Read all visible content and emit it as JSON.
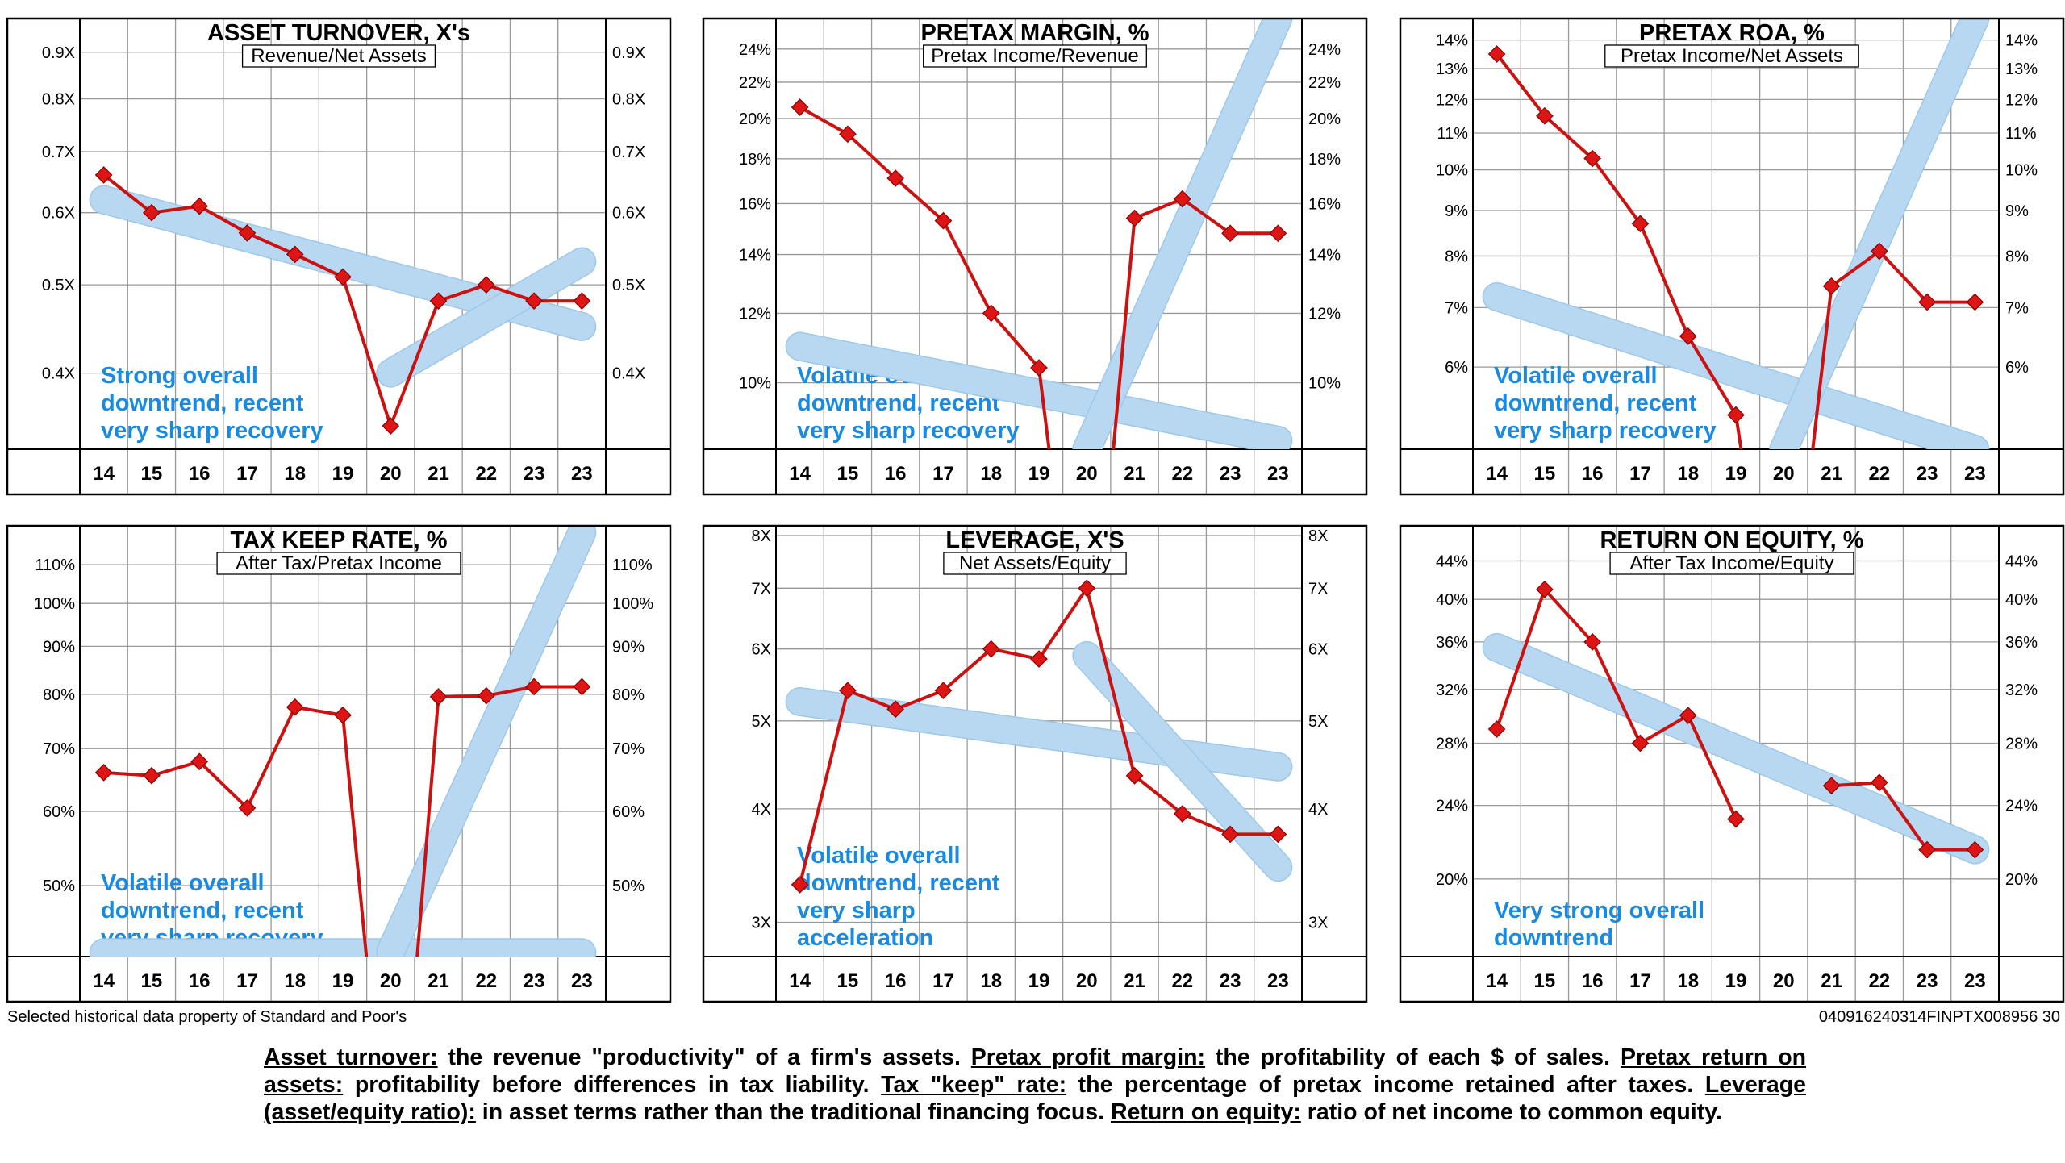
{
  "years": [
    "14",
    "15",
    "16",
    "17",
    "18",
    "19",
    "20",
    "21",
    "22",
    "23",
    "23"
  ],
  "colors": {
    "series": "#cc1111",
    "trend": "#b8d8f2",
    "note": "#1a8ae0",
    "grid": "#999999"
  },
  "chart_data": [
    {
      "id": "asset-turnover",
      "type": "line",
      "scale": "log",
      "title": "ASSET TURNOVER, X's",
      "subtitle": "Revenue/Net Assets",
      "ylim": [
        0.33,
        0.98
      ],
      "ticks": [
        {
          "v": 0.9,
          "l": "0.9X"
        },
        {
          "v": 0.8,
          "l": "0.8X"
        },
        {
          "v": 0.7,
          "l": "0.7X"
        },
        {
          "v": 0.6,
          "l": "0.6X"
        },
        {
          "v": 0.5,
          "l": "0.5X"
        },
        {
          "v": 0.4,
          "l": "0.4X"
        }
      ],
      "values": [
        0.66,
        0.6,
        0.61,
        0.57,
        0.54,
        0.51,
        0.35,
        0.48,
        0.5,
        0.48,
        0.48
      ],
      "trends": [
        {
          "x": [
            0,
            10
          ],
          "y": [
            0.62,
            0.45
          ]
        },
        {
          "x": [
            6,
            10
          ],
          "y": [
            0.4,
            0.53
          ]
        }
      ],
      "note": [
        "Strong overall",
        "downtrend,  recent",
        "very sharp recovery"
      ],
      "note_pos": "bottom-left"
    },
    {
      "id": "pretax-margin",
      "type": "line",
      "scale": "log",
      "title": "PRETAX MARGIN, %",
      "subtitle": "Pretax Income/Revenue",
      "ylim": [
        8.4,
        26.0
      ],
      "ticks": [
        {
          "v": 24,
          "l": "24%"
        },
        {
          "v": 22,
          "l": "22%"
        },
        {
          "v": 20,
          "l": "20%"
        },
        {
          "v": 18,
          "l": "18%"
        },
        {
          "v": 16,
          "l": "16%"
        },
        {
          "v": 14,
          "l": "14%"
        },
        {
          "v": 12,
          "l": "12%"
        },
        {
          "v": 10,
          "l": "10%"
        }
      ],
      "values": [
        20.6,
        19.2,
        17.1,
        15.3,
        12.0,
        10.4,
        null,
        15.4,
        16.2,
        14.8,
        14.8
      ],
      "drops": [
        {
          "from": 5,
          "x": 5.22
        },
        {
          "from": 7,
          "x": 6.55
        }
      ],
      "trends": [
        {
          "x": [
            0,
            10
          ],
          "y": [
            11.0,
            8.6
          ]
        },
        {
          "x": [
            6,
            10
          ],
          "y": [
            8.4,
            26.0
          ]
        }
      ],
      "note": [
        "Volatile overall",
        "downtrend,  recent",
        "very sharp recovery"
      ],
      "note_pos": "bottom-left"
    },
    {
      "id": "pretax-roa",
      "type": "line",
      "scale": "log",
      "title": "PRETAX ROA, %",
      "subtitle": "Pretax Income/Net Assets",
      "ylim": [
        4.85,
        14.8
      ],
      "ticks": [
        {
          "v": 14,
          "l": "14%"
        },
        {
          "v": 13,
          "l": "13%"
        },
        {
          "v": 12,
          "l": "12%"
        },
        {
          "v": 11,
          "l": "11%"
        },
        {
          "v": 10,
          "l": "10%"
        },
        {
          "v": 9,
          "l": "9%"
        },
        {
          "v": 8,
          "l": "8%"
        },
        {
          "v": 7,
          "l": "7%"
        },
        {
          "v": 6,
          "l": "6%"
        }
      ],
      "values": [
        13.5,
        11.5,
        10.3,
        8.7,
        6.5,
        5.3,
        null,
        7.4,
        8.1,
        7.1,
        7.1
      ],
      "drops": [
        {
          "from": 5,
          "x": 5.12
        },
        {
          "from": 7,
          "x": 6.6
        }
      ],
      "trends": [
        {
          "x": [
            0,
            10
          ],
          "y": [
            7.2,
            4.85
          ]
        },
        {
          "x": [
            6,
            10
          ],
          "y": [
            4.85,
            14.8
          ]
        }
      ],
      "note": [
        "Volatile overall",
        "downtrend,  recent",
        "very sharp recovery"
      ],
      "note_pos": "bottom-left"
    },
    {
      "id": "tax-keep-rate",
      "type": "line",
      "scale": "log",
      "title": "TAX KEEP RATE, %",
      "subtitle": "After Tax/Pretax Income",
      "ylim": [
        42.0,
        121.0
      ],
      "ticks": [
        {
          "v": 110,
          "l": "110%"
        },
        {
          "v": 100,
          "l": "100%"
        },
        {
          "v": 90,
          "l": "90%"
        },
        {
          "v": 80,
          "l": "80%"
        },
        {
          "v": 70,
          "l": "70%"
        },
        {
          "v": 60,
          "l": "60%"
        },
        {
          "v": 50,
          "l": "50%"
        }
      ],
      "values": [
        66.0,
        65.5,
        67.8,
        60.5,
        77.5,
        76.0,
        null,
        79.5,
        79.7,
        81.5,
        81.5
      ],
      "drops": [
        {
          "from": 5,
          "x": 5.5
        },
        {
          "from": 7,
          "x": 6.55
        }
      ],
      "trends": [
        {
          "x": [
            0,
            10
          ],
          "y": [
            42.4,
            42.4
          ]
        },
        {
          "x": [
            6,
            10
          ],
          "y": [
            42.5,
            119.0
          ]
        }
      ],
      "note": [
        "Volatile overall",
        "downtrend,  recent",
        "very sharp recovery"
      ],
      "note_pos": "bottom-left"
    },
    {
      "id": "leverage",
      "type": "line",
      "scale": "log",
      "title": "LEVERAGE, X'S",
      "subtitle": "Net Assets/Equity",
      "ylim": [
        2.75,
        8.2
      ],
      "ticks": [
        {
          "v": 8,
          "l": "8X"
        },
        {
          "v": 7,
          "l": "7X"
        },
        {
          "v": 6,
          "l": "6X"
        },
        {
          "v": 5,
          "l": "5X"
        },
        {
          "v": 4,
          "l": "4X"
        },
        {
          "v": 3,
          "l": "3X"
        }
      ],
      "values": [
        3.3,
        5.4,
        5.15,
        5.4,
        6.0,
        5.85,
        7.0,
        4.35,
        3.95,
        3.75,
        3.75
      ],
      "trends": [
        {
          "x": [
            0,
            10
          ],
          "y": [
            5.25,
            4.45
          ]
        },
        {
          "x": [
            6,
            10
          ],
          "y": [
            5.9,
            3.45
          ]
        }
      ],
      "note": [
        "Volatile overall",
        "downtrend,  recent",
        "very sharp",
        "acceleration"
      ],
      "note_pos": "bottom-left"
    },
    {
      "id": "return-on-equity",
      "type": "line",
      "scale": "log",
      "title": "RETURN ON EQUITY, %",
      "subtitle": "After Tax Income/Equity",
      "ylim": [
        16.5,
        48.0
      ],
      "ticks": [
        {
          "v": 44,
          "l": "44%"
        },
        {
          "v": 40,
          "l": "40%"
        },
        {
          "v": 36,
          "l": "36%"
        },
        {
          "v": 32,
          "l": "32%"
        },
        {
          "v": 28,
          "l": "28%"
        },
        {
          "v": 24,
          "l": "24%"
        },
        {
          "v": 20,
          "l": "20%"
        }
      ],
      "values": [
        29.0,
        41.0,
        36.0,
        28.0,
        30.0,
        23.2,
        null,
        25.2,
        25.4,
        21.5,
        21.5
      ],
      "trends": [
        {
          "x": [
            0,
            10
          ],
          "y": [
            35.5,
            21.5
          ]
        }
      ],
      "note": [
        "Very strong overall",
        "downtrend"
      ],
      "note_pos": "bottom-left"
    }
  ],
  "footer": {
    "source": "Selected historical data property of Standard and Poor's",
    "code": "040916240314FINPTX008956  30"
  },
  "definitions": {
    "t1": "Asset turnover:",
    "d1": " the revenue \"productivity\" of a firm's assets. ",
    "t2": "Pretax profit margin:",
    "d2": " the profitability of each $ of sales. ",
    "t3": "Pretax return on assets:",
    "d3": " profitability before differences in tax liability. ",
    "t4": "Tax \"keep\" rate:",
    "d4": " the percentage of pretax income retained after taxes. ",
    "t5": "Leverage (asset/equity ratio):",
    "d5": " in asset terms rather than the traditional financing focus. ",
    "t6": "Return on equity:",
    "d6": " ratio of net income to common equity."
  }
}
